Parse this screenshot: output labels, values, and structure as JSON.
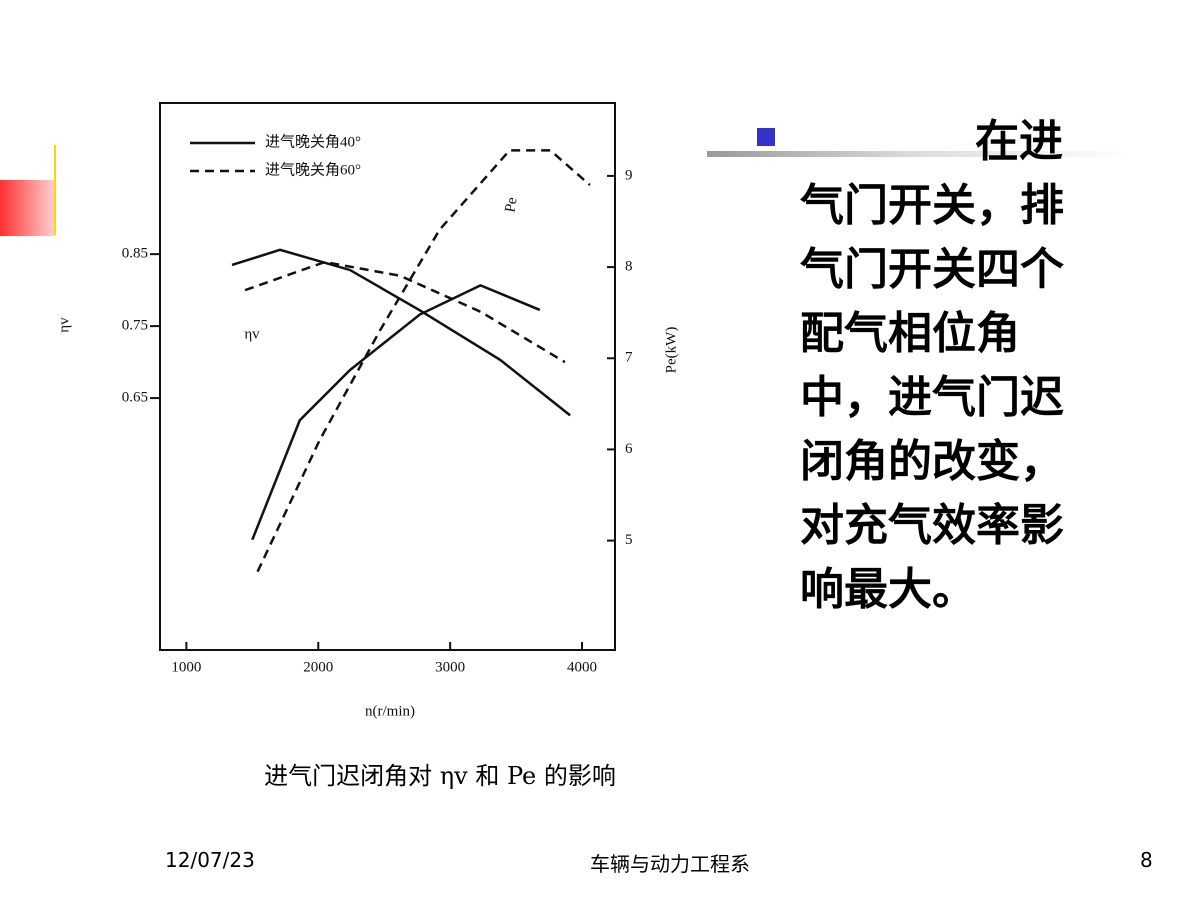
{
  "slide": {
    "body": "在进气门开关，排气门开关四个配气相位角中，进气门迟闭角的改变，对充气效率影响最大。",
    "footer": {
      "date": "12/07/23",
      "center": "车辆与动力工程系",
      "page": "8"
    },
    "caption": "进气门迟闭角对 ηv 和 Pe 的影响"
  },
  "chart_data": {
    "type": "line",
    "xlabel": "n(r/min)",
    "ylabel": "ηv",
    "y2label": "Pe(kW)",
    "xlim": [
      800,
      4250
    ],
    "xticks": [
      1000,
      2000,
      3000,
      4000
    ],
    "ylim": [
      0.3,
      1.06
    ],
    "yticks": [
      0.85,
      0.75,
      0.65
    ],
    "y2lim": [
      3.8,
      9.8
    ],
    "y2ticks": [
      9,
      8,
      7,
      6,
      5
    ],
    "annotations": [
      "ηv",
      "Pe"
    ],
    "series": [
      {
        "name": "进气晚关角40°",
        "line_style": "solid",
        "color": "#111111",
        "axis": "y",
        "x": [
          1346,
          1710,
          2240,
          2770,
          3380,
          3910
        ],
        "values": [
          0.835,
          0.856,
          0.828,
          0.772,
          0.703,
          0.626
        ]
      },
      {
        "name": "进气晚关角60°",
        "line_style": "dashed",
        "color": "#111111",
        "axis": "y",
        "x": [
          1445,
          2050,
          2620,
          3230,
          3870
        ],
        "values": [
          0.8,
          0.839,
          0.82,
          0.77,
          0.7
        ]
      },
      {
        "name": "进气晚关角40°",
        "line_style": "solid",
        "color": "#111111",
        "axis": "y2",
        "x": [
          1500,
          1860,
          2240,
          2770,
          3230,
          3680
        ],
        "values": [
          5.01,
          6.32,
          6.87,
          7.48,
          7.8,
          7.53
        ]
      },
      {
        "name": "进气晚关角60°",
        "line_style": "dashed",
        "color": "#111111",
        "axis": "y2",
        "x": [
          1540,
          2010,
          2470,
          2920,
          3450,
          3760,
          4060
        ],
        "values": [
          4.66,
          6.1,
          7.31,
          8.41,
          9.28,
          9.28,
          8.9
        ]
      }
    ]
  }
}
